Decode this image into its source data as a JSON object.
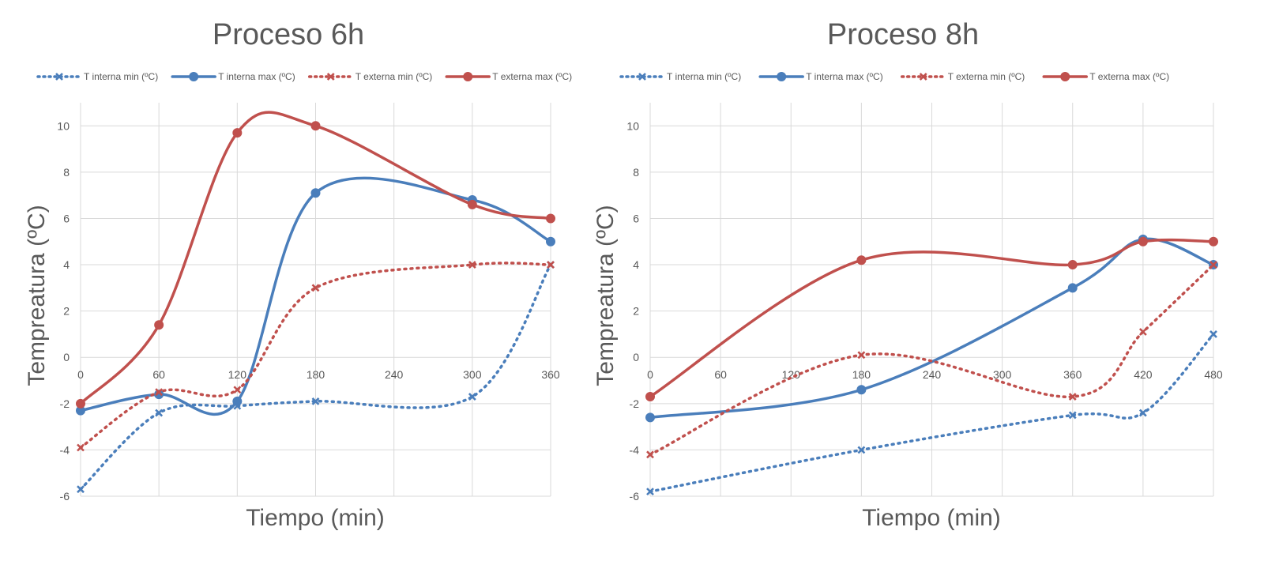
{
  "chart_data": [
    {
      "type": "line",
      "title": "Proceso 6h",
      "xlabel": "Tiempo (min)",
      "ylabel": "Tempreatura (ºC)",
      "xticks": [
        0,
        60,
        120,
        180,
        240,
        300,
        360
      ],
      "yticks": [
        -6,
        -4,
        -2,
        0,
        2,
        4,
        6,
        8,
        10
      ],
      "xlim": [
        0,
        360
      ],
      "ylim": [
        -6,
        11
      ],
      "grid": true,
      "legend_position": "top",
      "series": [
        {
          "name": "T interna min (ºC)",
          "style": "dotted",
          "marker": "x",
          "color": "#4A7EBB",
          "x": [
            0,
            60,
            120,
            180,
            300,
            360
          ],
          "y": [
            -5.7,
            -2.4,
            -2.1,
            -1.9,
            -1.7,
            4.0
          ]
        },
        {
          "name": "T interna max (ºC)",
          "style": "solid",
          "marker": "circle",
          "color": "#4A7EBB",
          "x": [
            0,
            60,
            120,
            180,
            300,
            360
          ],
          "y": [
            -2.3,
            -1.6,
            -1.9,
            7.1,
            6.8,
            5.0
          ]
        },
        {
          "name": "T externa min (ºC)",
          "style": "dotted",
          "marker": "x",
          "color": "#C0504D",
          "x": [
            0,
            60,
            120,
            180,
            300,
            360
          ],
          "y": [
            -3.9,
            -1.5,
            -1.4,
            3.0,
            4.0,
            4.0
          ]
        },
        {
          "name": "T externa max (ºC)",
          "style": "solid",
          "marker": "circle",
          "color": "#C0504D",
          "x": [
            0,
            60,
            120,
            180,
            300,
            360
          ],
          "y": [
            -2.0,
            1.4,
            9.7,
            10.0,
            6.6,
            6.0
          ]
        }
      ]
    },
    {
      "type": "line",
      "title": "Proceso 8h",
      "xlabel": "Tiempo (min)",
      "ylabel": "Tempreatura (ºC)",
      "xticks": [
        0,
        60,
        120,
        180,
        240,
        300,
        360,
        420,
        480
      ],
      "yticks": [
        -6,
        -4,
        -2,
        0,
        2,
        4,
        6,
        8,
        10
      ],
      "xlim": [
        0,
        480
      ],
      "ylim": [
        -6,
        11
      ],
      "grid": true,
      "legend_position": "top",
      "series": [
        {
          "name": "T interna min (ºC)",
          "style": "dotted",
          "marker": "x",
          "color": "#4A7EBB",
          "x": [
            0,
            180,
            360,
            420,
            480
          ],
          "y": [
            -5.8,
            -4.0,
            -2.5,
            -2.4,
            1.0
          ]
        },
        {
          "name": "T interna max (ºC)",
          "style": "solid",
          "marker": "circle",
          "color": "#4A7EBB",
          "x": [
            0,
            180,
            360,
            420,
            480
          ],
          "y": [
            -2.6,
            -1.4,
            3.0,
            5.1,
            4.0
          ]
        },
        {
          "name": "T externa min (ºC)",
          "style": "dotted",
          "marker": "x",
          "color": "#C0504D",
          "x": [
            0,
            180,
            360,
            420,
            480
          ],
          "y": [
            -4.2,
            0.1,
            -1.7,
            1.1,
            4.0
          ]
        },
        {
          "name": "T externa max (ºC)",
          "style": "solid",
          "marker": "circle",
          "color": "#C0504D",
          "x": [
            0,
            180,
            360,
            420,
            480
          ],
          "y": [
            -1.7,
            4.2,
            4.0,
            5.0,
            5.0
          ]
        }
      ]
    }
  ]
}
